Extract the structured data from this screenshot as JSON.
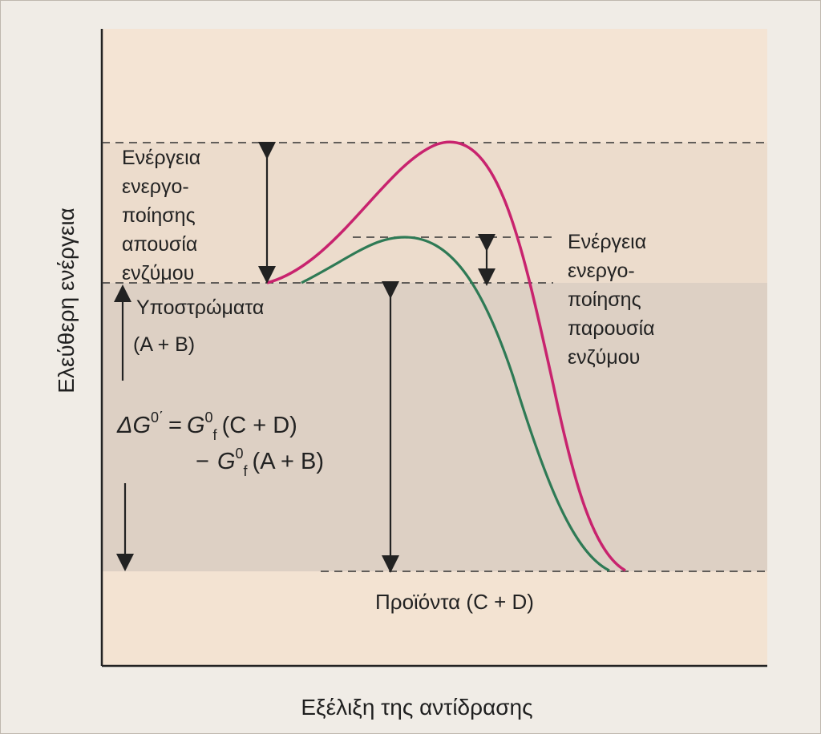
{
  "axes": {
    "y_label": "Ελεύθερη ενέργεια",
    "x_label": "Εξέλιξη της αντίδρασης"
  },
  "labels": {
    "activation_without_enzyme": [
      "Ενέργεια",
      "ενεργο-",
      "ποίησης",
      "απουσία",
      "ενζύμου"
    ],
    "activation_with_enzyme": [
      "Ενέργεια",
      "ενεργο-",
      "ποίησης",
      "παρουσία",
      "ενζύμου"
    ],
    "substrates": [
      "Υποστρώματα",
      "(A + B)"
    ],
    "products": "Προϊόντα (C + D)",
    "delta_g": {
      "lhs_symbol": "ΔG",
      "lhs_sup": "0΄",
      "eq": "=",
      "g_symbol": "G",
      "g_sup": "0",
      "g_sub": "f",
      "term1": "(C + D)",
      "minus": "−",
      "term2": "(A + B)"
    }
  },
  "colors": {
    "no_enzyme_curve": "#c8236e",
    "enzyme_curve": "#2e7a55",
    "band_light": "#f6e6d6",
    "band_mid": "#ead8c7",
    "band_gray": "#d9cdc1"
  }
}
